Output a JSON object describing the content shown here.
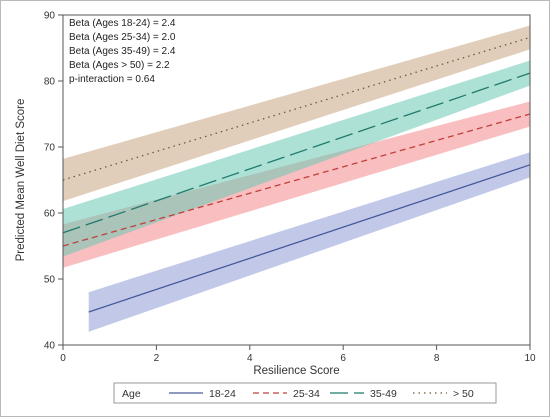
{
  "chart_data": {
    "type": "line",
    "xlabel": "Resilience Score",
    "ylabel": "Predicted Mean Well Diet Score",
    "xlim": [
      0,
      10
    ],
    "ylim": [
      40,
      90
    ],
    "x_ticks": [
      "0",
      "2",
      "4",
      "6",
      "8",
      "10"
    ],
    "y_ticks": [
      "40",
      "50",
      "60",
      "70",
      "80",
      "90"
    ],
    "grid": false,
    "annotations": [
      "Beta (Ages 18-24) = 2.4",
      "Beta (Ages 25-34) = 2.0",
      "Beta (Ages 35-49) = 2.4",
      "Beta (Ages > 50) = 2.2",
      "p-interaction = 0.64"
    ],
    "legend": {
      "title": "Age",
      "placement": "bottom"
    },
    "series": [
      {
        "name": "18-24",
        "color": "#4a5a9c",
        "band_color": "#8e9bd6",
        "dash": "solid",
        "x": [
          0.55,
          10
        ],
        "y": [
          45.0,
          67.3
        ],
        "lower": [
          42.0,
          65.4
        ],
        "upper": [
          48.0,
          69.2
        ]
      },
      {
        "name": "25-34",
        "color": "#c0403a",
        "band_color": "#f4888a",
        "dash": "dashed",
        "x": [
          0,
          10
        ],
        "y": [
          55.0,
          75.0
        ],
        "lower": [
          51.7,
          73.1
        ],
        "upper": [
          58.3,
          76.9
        ]
      },
      {
        "name": "35-49",
        "color": "#217a6d",
        "band_color": "#6cc8b4",
        "dash": "longdash",
        "x": [
          0,
          10
        ],
        "y": [
          57.0,
          81.2
        ],
        "lower": [
          53.4,
          79.3
        ],
        "upper": [
          60.6,
          83.1
        ]
      },
      {
        "name": "> 50",
        "color": "#6b5a3a",
        "band_color": "#c9a582",
        "dash": "dotted",
        "x": [
          0,
          10
        ],
        "y": [
          65.0,
          86.6
        ],
        "lower": [
          61.8,
          84.8
        ],
        "upper": [
          68.2,
          88.4
        ]
      }
    ]
  }
}
